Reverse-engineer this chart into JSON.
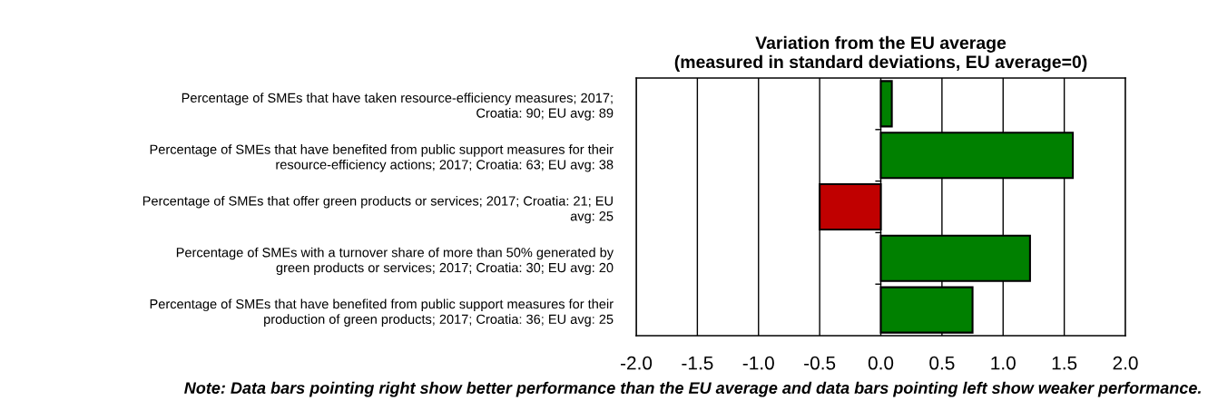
{
  "chart_data": {
    "type": "bar",
    "orientation": "horizontal",
    "title": "Variation from the EU average\n(measured in standard deviations, EU average=0)",
    "categories": [
      "Percentage of SMEs that have taken resource-efficiency measures; 2017;\nCroatia: 90; EU avg: 89",
      "Percentage of SMEs that have benefited from public support measures for their\nresource-efficiency actions; 2017; Croatia: 63; EU avg: 38",
      "Percentage of SMEs that offer green products or services; 2017; Croatia: 21; EU\navg: 25",
      "Percentage of SMEs with a turnover share of more than 50% generated by\ngreen products or services; 2017; Croatia: 30; EU avg: 20",
      "Percentage of SMEs that have benefited from public support measures for their\nproduction of green products; 2017; Croatia: 36; EU avg: 25"
    ],
    "values": [
      0.09,
      1.57,
      -0.5,
      1.22,
      0.75
    ],
    "colors": [
      "#008000",
      "#008000",
      "#c00000",
      "#008000",
      "#008000"
    ],
    "xlim": [
      -2.0,
      2.0
    ],
    "xticks": [
      {
        "value": -2.0,
        "label": "-2.0"
      },
      {
        "value": -1.5,
        "label": "-1.5"
      },
      {
        "value": -1.0,
        "label": "-1.0"
      },
      {
        "value": -0.5,
        "label": "-0.5"
      },
      {
        "value": 0.0,
        "label": "0.0"
      },
      {
        "value": 0.5,
        "label": "0.5"
      },
      {
        "value": 1.0,
        "label": "1.0"
      },
      {
        "value": 1.5,
        "label": "1.5"
      },
      {
        "value": 2.0,
        "label": "2.0"
      }
    ],
    "grid": "x",
    "annotations": [
      "Note: Data bars pointing right show better performance than the EU average and data bars pointing left show weaker performance."
    ]
  }
}
